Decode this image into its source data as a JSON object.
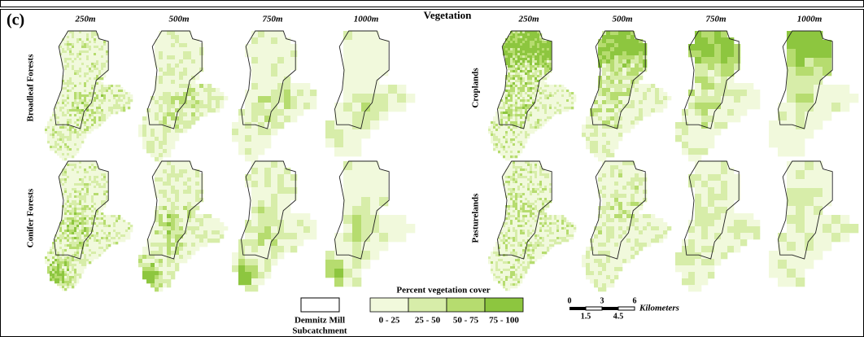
{
  "panel_label": "(c)",
  "title": "Vegetation",
  "columns": [
    "250m",
    "500m",
    "750m",
    "1000m"
  ],
  "rows_left": [
    "Broadleaf Forests",
    "Conifer Forests"
  ],
  "rows_right": [
    "Croplands",
    "Pasturelands"
  ],
  "legend": {
    "outline_label": [
      "Demnitz Mill",
      "Subcatchment"
    ],
    "title": "Percent vegetation cover",
    "classes": [
      "0 - 25",
      "25 - 50",
      "50 - 75",
      "75 - 100"
    ]
  },
  "scale_bar": {
    "top": [
      "0",
      "3",
      "6"
    ],
    "bottom": [
      "1.5",
      "4.5"
    ],
    "unit": "Kilometers"
  }
}
